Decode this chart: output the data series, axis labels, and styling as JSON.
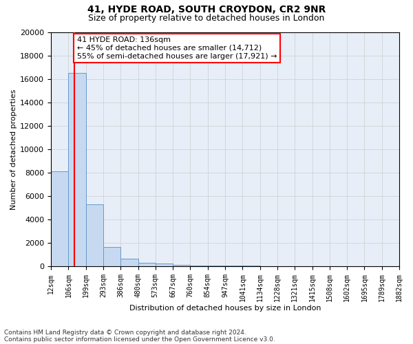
{
  "title1": "41, HYDE ROAD, SOUTH CROYDON, CR2 9NR",
  "title2": "Size of property relative to detached houses in London",
  "xlabel": "Distribution of detached houses by size in London",
  "ylabel": "Number of detached properties",
  "footer1": "Contains HM Land Registry data © Crown copyright and database right 2024.",
  "footer2": "Contains public sector information licensed under the Open Government Licence v3.0.",
  "bar_left_edges": [
    12,
    106,
    199,
    293,
    386,
    480,
    573,
    667,
    760,
    854,
    947,
    1041,
    1134,
    1228,
    1321,
    1415,
    1508,
    1602,
    1695,
    1789
  ],
  "bar_widths": [
    94,
    93,
    94,
    93,
    94,
    93,
    94,
    93,
    94,
    93,
    94,
    93,
    94,
    93,
    94,
    93,
    94,
    93,
    94,
    93
  ],
  "bar_heights": [
    8100,
    16500,
    5300,
    1700,
    700,
    350,
    250,
    150,
    100,
    80,
    70,
    60,
    55,
    50,
    50,
    45,
    40,
    35,
    30,
    25
  ],
  "bar_color": "#c6d9f0",
  "bar_edgecolor": "#6699cc",
  "red_line_x": 136,
  "annotation_text": "41 HYDE ROAD: 136sqm\n← 45% of detached houses are smaller (14,712)\n55% of semi-detached houses are larger (17,921) →",
  "annotation_box_color": "white",
  "annotation_box_edgecolor": "red",
  "red_line_color": "red",
  "ylim": [
    0,
    20000
  ],
  "xlim": [
    12,
    1882
  ],
  "yticks": [
    0,
    2000,
    4000,
    6000,
    8000,
    10000,
    12000,
    14000,
    16000,
    18000,
    20000
  ],
  "tick_labels": [
    "12sqm",
    "106sqm",
    "199sqm",
    "293sqm",
    "386sqm",
    "480sqm",
    "573sqm",
    "667sqm",
    "760sqm",
    "854sqm",
    "947sqm",
    "1041sqm",
    "1134sqm",
    "1228sqm",
    "1321sqm",
    "1415sqm",
    "1508sqm",
    "1602sqm",
    "1695sqm",
    "1789sqm",
    "1882sqm"
  ],
  "tick_positions": [
    12,
    106,
    199,
    293,
    386,
    480,
    573,
    667,
    760,
    854,
    947,
    1041,
    1134,
    1228,
    1321,
    1415,
    1508,
    1602,
    1695,
    1789,
    1882
  ],
  "grid_color": "#cccccc",
  "bg_color": "#e8eef8",
  "title1_fontsize": 10,
  "title2_fontsize": 9,
  "axis_label_fontsize": 8,
  "tick_fontsize": 7,
  "ytick_fontsize": 8,
  "annotation_fontsize": 8,
  "footer_fontsize": 6.5
}
